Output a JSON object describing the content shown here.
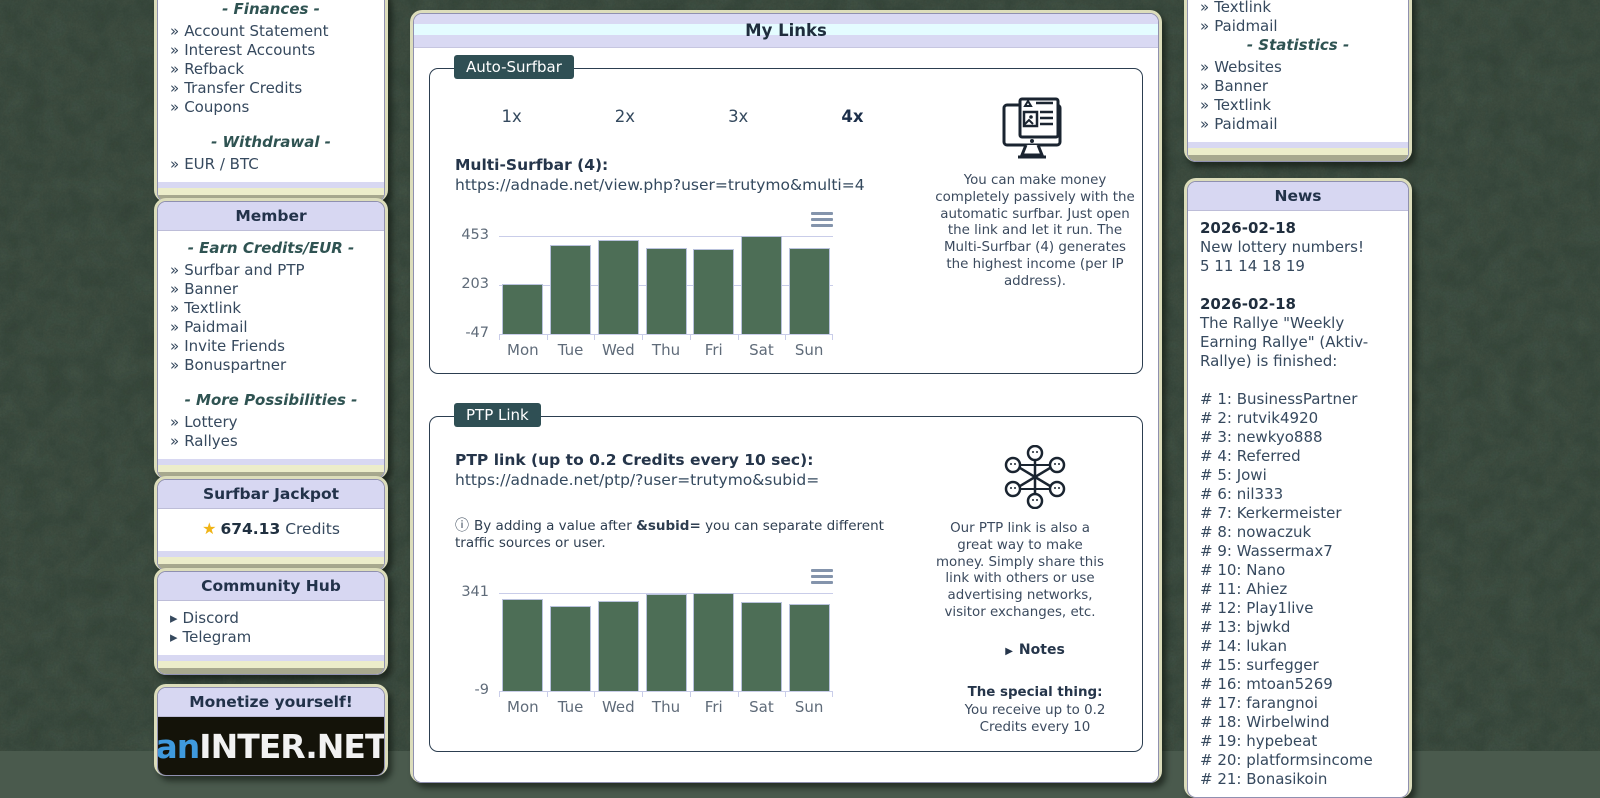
{
  "ui": {
    "link_bullet": "»",
    "community_bullet": "▸",
    "notes_arrow": "▶",
    "info_icon": "ⓘ",
    "star_icon": "★",
    "colors": {
      "accent_header": "#d7d7f2",
      "legend_bg": "#2f4f54",
      "bar_green": "#4d6e56",
      "gold_star": "#f0b416",
      "khaki_frame": "#dcddbb"
    }
  },
  "left_sidebar": {
    "finances_box": {
      "sections": [
        {
          "heading": "- Finances -",
          "items": [
            "Account Statement",
            "Interest Accounts",
            "Refback",
            "Transfer Credits",
            "Coupons"
          ]
        },
        {
          "heading": "- Withdrawal -",
          "items": [
            "EUR / BTC"
          ]
        }
      ]
    },
    "member_box": {
      "title": "Member",
      "sections": [
        {
          "heading": "- Earn Credits/EUR -",
          "items": [
            "Surfbar and PTP",
            "Banner",
            "Textlink",
            "Paidmail",
            "Invite Friends",
            "Bonuspartner"
          ]
        },
        {
          "heading": "- More Possibilities -",
          "items": [
            "Lottery",
            "Rallyes"
          ]
        }
      ]
    },
    "jackpot_box": {
      "title": "Surfbar Jackpot",
      "amount": "674.13",
      "unit": "Credits"
    },
    "community_box": {
      "title": "Community Hub",
      "items": [
        "Discord",
        "Telegram"
      ]
    },
    "monetize_box": {
      "title": "Monetize yourself!",
      "banner_blue": "an",
      "banner_white": "INTER.NET"
    }
  },
  "main": {
    "title": "My Links",
    "auto_surfbar": {
      "legend": "Auto-Surfbar",
      "multiplier_options": [
        "1x",
        "2x",
        "3x",
        "4x"
      ],
      "active_multiplier": "4x",
      "link_label": "Multi-Surfbar (4):",
      "link_url": "https://adnade.net/view.php?user=trutymo&multi=4",
      "description": "You can make money completely passively with the automatic surfbar. Just open the link and let it run. The Multi-Surfbar (4) generates the highest income (per IP address)."
    },
    "ptp": {
      "legend": "PTP Link",
      "link_label": "PTP link (up to 0.2 Credits every 10 sec):",
      "link_url": "https://adnade.net/ptp/?user=trutymo&subid=",
      "hint_prefix": "By adding a value after ",
      "hint_bold": "&subid=",
      "hint_suffix": " you can separate different traffic sources or user.",
      "description": "Our PTP link is also a great way to make money. Simply share this link with others or use advertising networks, visitor exchanges, etc.",
      "notes_label": "Notes",
      "special_heading": "The special thing:",
      "special_text": "You receive up to 0.2 Credits every 10"
    }
  },
  "right_sidebar": {
    "links_box": {
      "top_items": [
        "Textlink",
        "Paidmail"
      ],
      "sections": [
        {
          "heading": "- Statistics -",
          "items": [
            "Websites",
            "Banner",
            "Textlink",
            "Paidmail"
          ]
        }
      ]
    },
    "news_box": {
      "title": "News",
      "entries": [
        {
          "date": "2026-02-18",
          "lines": [
            "New lottery numbers!",
            "5 11 14 18 19"
          ]
        },
        {
          "date": "2026-02-18",
          "lines": [
            "The Rallye \"Weekly Earning Rallye\" (Aktiv-Rallye) is finished:"
          ]
        }
      ],
      "rankings": [
        "# 1: BusinessPartner",
        "# 2: rutvik4920",
        "# 3: newkyo888",
        "# 4: Referred",
        "# 5: Jowi",
        "# 6: nil333",
        "# 7: Kerkermeister",
        "# 8: nowaczuk",
        "# 9: Wassermax7",
        "# 10: Nano",
        "# 11: Ahiez",
        "# 12: Play1live",
        "# 13: bjwkd",
        "# 14: lukan",
        "# 15: surfegger",
        "# 16: mtoan5269",
        "# 17: farangnoi",
        "# 18: Wirbelwind",
        "# 19: hypebeat",
        "# 20: platformsincome",
        "# 21: Bonasikoin"
      ]
    }
  },
  "chart_data": [
    {
      "type": "bar",
      "title": "",
      "categories": [
        "Mon",
        "Tue",
        "Wed",
        "Thu",
        "Fri",
        "Sat",
        "Sun"
      ],
      "values": [
        210,
        405,
        432,
        390,
        386,
        453,
        394
      ],
      "yticks": [
        453,
        203,
        -47
      ],
      "ylim": [
        -47,
        453
      ],
      "xlabel": "",
      "ylabel": "",
      "grid": true,
      "legend_position": "none",
      "bar_color": "#4d6e56"
    },
    {
      "type": "bar",
      "title": "",
      "categories": [
        "Mon",
        "Tue",
        "Wed",
        "Thu",
        "Fri",
        "Sat",
        "Sun"
      ],
      "values": [
        320,
        293,
        314,
        338,
        341,
        310,
        301
      ],
      "yticks": [
        341,
        -9
      ],
      "ylim": [
        -9,
        341
      ],
      "xlabel": "",
      "ylabel": "",
      "grid": true,
      "legend_position": "none",
      "bar_color": "#4d6e56"
    }
  ]
}
